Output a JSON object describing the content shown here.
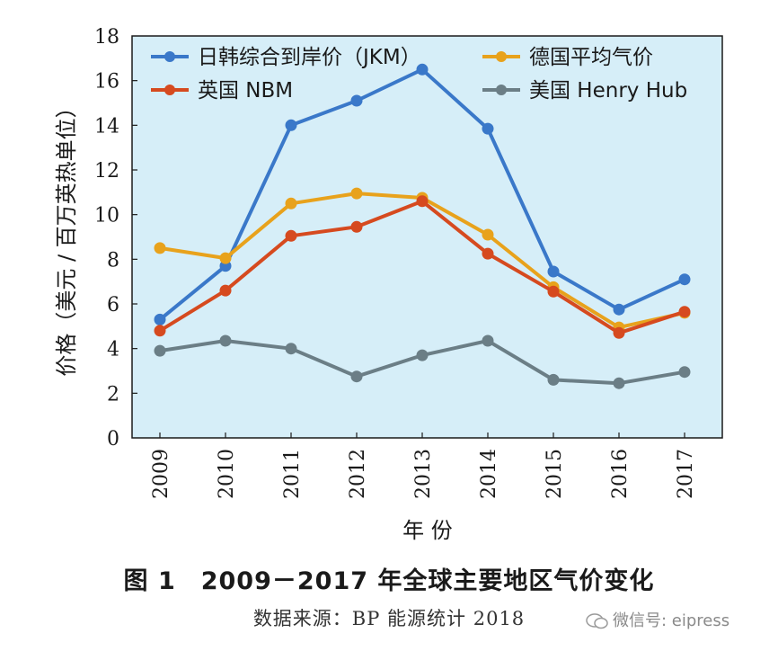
{
  "chart_data": {
    "type": "line",
    "x": [
      "2009",
      "2010",
      "2011",
      "2012",
      "2013",
      "2014",
      "2015",
      "2016",
      "2017"
    ],
    "xlabel": "年 份",
    "ylabel": "价格（美元 / 百万英热单位）",
    "ylim": [
      0,
      18
    ],
    "yticks": [
      "0",
      "2",
      "4",
      "6",
      "8",
      "10",
      "12",
      "14",
      "16",
      "18"
    ],
    "grid": false,
    "legend_position": "top",
    "background_color": "#d6eef8",
    "series": [
      {
        "name": "日韩综合到岸价（JKM）",
        "color": "#3a78c9",
        "values": [
          5.3,
          7.7,
          14.0,
          15.1,
          16.5,
          13.85,
          7.45,
          5.75,
          7.1
        ]
      },
      {
        "name": "德国平均气价",
        "color": "#e8a21c",
        "values": [
          8.5,
          8.05,
          10.5,
          10.95,
          10.75,
          9.1,
          6.75,
          4.95,
          5.6
        ]
      },
      {
        "name": "英国 NBM",
        "color": "#d64a1f",
        "values": [
          4.8,
          6.6,
          9.05,
          9.45,
          10.6,
          8.25,
          6.55,
          4.7,
          5.65
        ]
      },
      {
        "name": "美国 Henry Hub",
        "color": "#6b7e86",
        "values": [
          3.9,
          4.35,
          4.0,
          2.75,
          3.7,
          4.35,
          2.6,
          2.45,
          2.95
        ]
      }
    ]
  },
  "caption": {
    "title": "图 1　2009－2017 年全球主要地区气价变化",
    "source": "数据来源：BP 能源统计 2018"
  },
  "watermark": {
    "text": "微信号: eipress",
    "icon": "wechat-icon"
  }
}
